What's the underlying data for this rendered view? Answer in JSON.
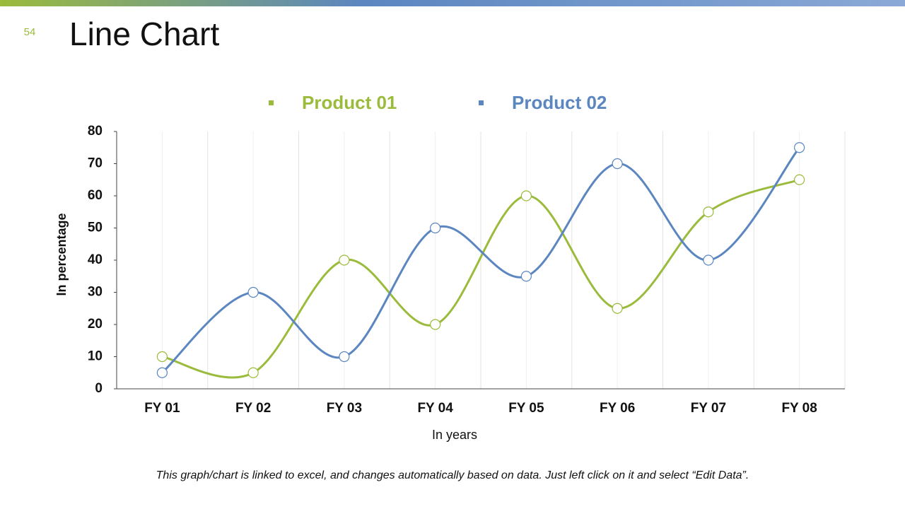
{
  "slide_number": "54",
  "footnote": "This graph/chart is linked to excel, and changes automatically based on data. Just left click on it and select “Edit Data”.",
  "chart_data": {
    "type": "line",
    "title": "Line Chart",
    "x_label": "In years",
    "y_label": "In percentage",
    "categories": [
      "FY 01",
      "FY 02",
      "FY 03",
      "FY 04",
      "FY 05",
      "FY 06",
      "FY 07",
      "FY 08"
    ],
    "series": [
      {
        "name": "Product 01",
        "color": "#9bbb3c",
        "values": [
          10,
          5,
          40,
          20,
          60,
          25,
          55,
          65
        ]
      },
      {
        "name": "Product 02",
        "color": "#5b86c0",
        "values": [
          5,
          30,
          10,
          50,
          35,
          70,
          40,
          75
        ]
      }
    ],
    "ylim": [
      0,
      80
    ],
    "yticks": [
      0,
      10,
      20,
      30,
      40,
      50,
      60,
      70,
      80
    ],
    "grid": "vertical",
    "smooth": true,
    "legend": "top"
  }
}
